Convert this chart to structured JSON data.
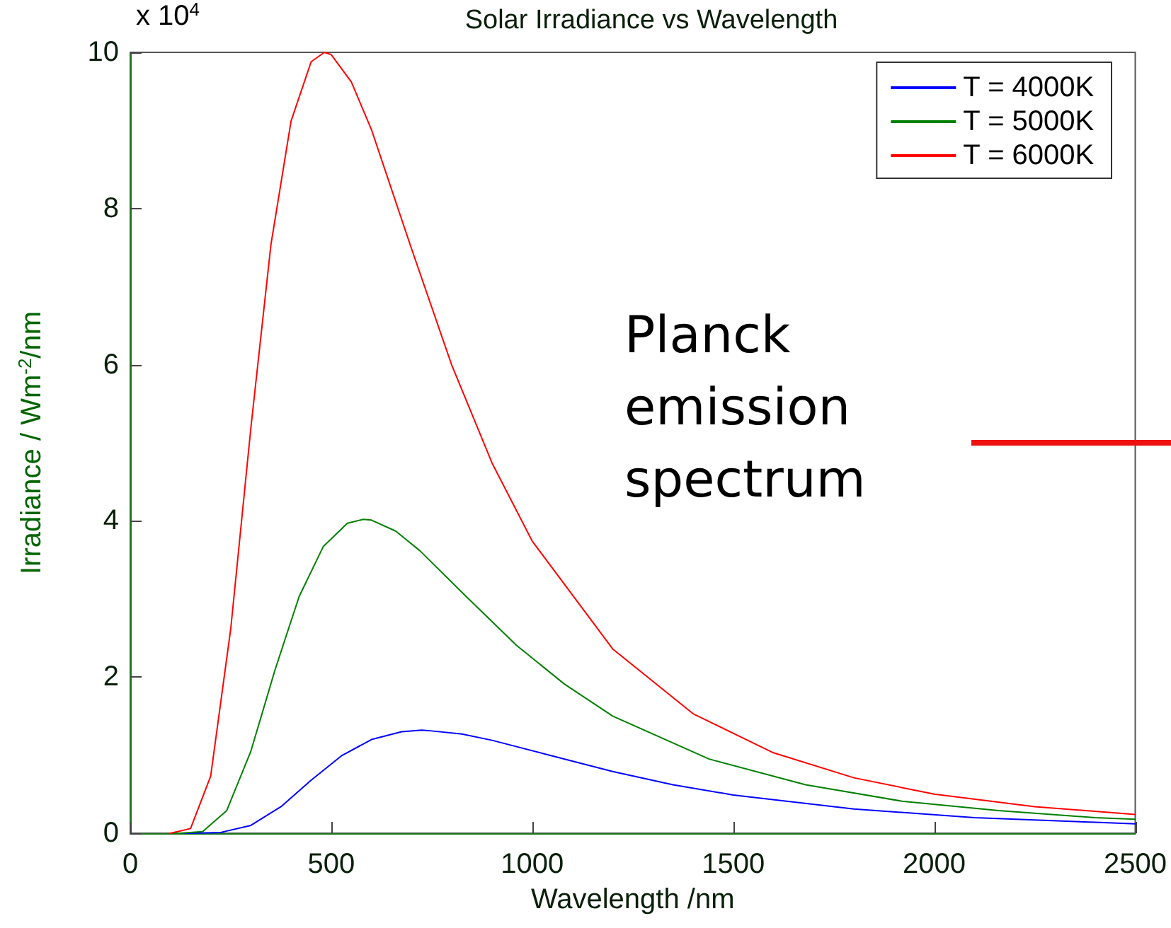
{
  "chart_data": {
    "type": "line",
    "title": "Solar Irradiance vs Wavelength",
    "xlabel": "Wavelength /nm",
    "ylabel": "Irradiance / Wm$^{-2}$/nm",
    "xlim": [
      0,
      2500
    ],
    "xticks": [
      0,
      500,
      1000,
      1500,
      2000,
      2500
    ],
    "ylim": [
      0,
      10
    ],
    "yticks": [
      0,
      2,
      4,
      6,
      8,
      10
    ],
    "annotations": [
      "x 10$^{4}$",
      "Planck emission spectrum"
    ],
    "legend": "top right",
    "grid": false,
    "marker": "none",
    "line_style": "solid",
    "series": [
      {
        "name": "T = 4000K",
        "color": "#0000ff",
        "x": [
          100,
          150,
          225,
          300,
          375,
          450,
          525,
          600,
          675,
          725,
          750,
          825,
          900,
          1050,
          1200,
          1350,
          1500,
          1800,
          2100,
          2400,
          2500
        ],
        "values": [
          0,
          0,
          0.01,
          0.1,
          0.34,
          0.68,
          0.99,
          1.2,
          1.3,
          1.32,
          1.31,
          1.27,
          1.19,
          0.99,
          0.79,
          0.62,
          0.49,
          0.31,
          0.2,
          0.14,
          0.12
        ]
      },
      {
        "name": "T = 5000K",
        "color": "#008000",
        "x": [
          100,
          120,
          180,
          240,
          300,
          360,
          420,
          480,
          540,
          580,
          600,
          660,
          720,
          840,
          960,
          1080,
          1200,
          1440,
          1680,
          1920,
          2160,
          2400,
          2500
        ],
        "values": [
          0,
          0,
          0.02,
          0.29,
          1.05,
          2.09,
          3.03,
          3.67,
          3.97,
          4.02,
          4.01,
          3.87,
          3.62,
          3.01,
          2.41,
          1.91,
          1.5,
          0.95,
          0.62,
          0.41,
          0.29,
          0.2,
          0.18
        ]
      },
      {
        "name": "T = 6000K",
        "color": "#ff0000",
        "x": [
          100,
          150,
          200,
          250,
          300,
          350,
          400,
          450,
          483,
          500,
          550,
          600,
          700,
          800,
          900,
          1000,
          1200,
          1400,
          1600,
          1800,
          2000,
          2250,
          2500
        ],
        "values": [
          0,
          0.06,
          0.73,
          2.62,
          5.19,
          7.54,
          9.12,
          9.88,
          10,
          9.97,
          9.62,
          9.01,
          7.48,
          5.99,
          4.74,
          3.74,
          2.36,
          1.53,
          1.03,
          0.71,
          0.5,
          0.34,
          0.24
        ]
      }
    ]
  }
}
